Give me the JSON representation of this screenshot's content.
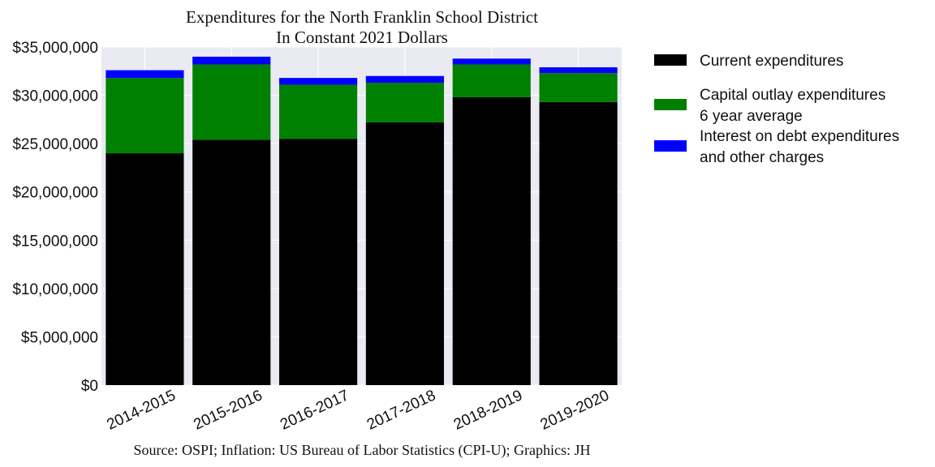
{
  "chart_data": {
    "type": "bar",
    "stacked": true,
    "title": [
      "Expenditures for the North Franklin School District",
      "In Constant 2021 Dollars"
    ],
    "source": "Source: OSPI; Inflation: US Bureau of Labor Statistics (CPI-U); Graphics: JH",
    "categories": [
      "2014-2015",
      "2015-2016",
      "2016-2017",
      "2017-2018",
      "2018-2019",
      "2019-2020"
    ],
    "series": [
      {
        "name": [
          "Current expenditures"
        ],
        "color": "#000000",
        "values": [
          24000000,
          25400000,
          25500000,
          27200000,
          29800000,
          29300000
        ]
      },
      {
        "name": [
          "Capital outlay expenditures",
          "6 year average"
        ],
        "color": "#008000",
        "values": [
          7800000,
          7800000,
          5600000,
          4100000,
          3400000,
          3000000
        ]
      },
      {
        "name": [
          "Interest on debt expenditures",
          "and other charges"
        ],
        "color": "#0000ff",
        "values": [
          800000,
          800000,
          700000,
          700000,
          600000,
          600000
        ]
      }
    ],
    "yticks": [
      0,
      5000000,
      10000000,
      15000000,
      20000000,
      25000000,
      30000000,
      35000000
    ],
    "ytick_labels": [
      "$0",
      "$5,000,000",
      "$10,000,000",
      "$15,000,000",
      "$20,000,000",
      "$25,000,000",
      "$30,000,000",
      "$35,000,000"
    ],
    "ylim": [
      0,
      35000000
    ],
    "xlabel": "",
    "ylabel": "",
    "grid": true,
    "legend_position": "outside-right-top"
  },
  "colors": {
    "plot_background": "#eaeaf2",
    "grid": "#ffffff"
  }
}
